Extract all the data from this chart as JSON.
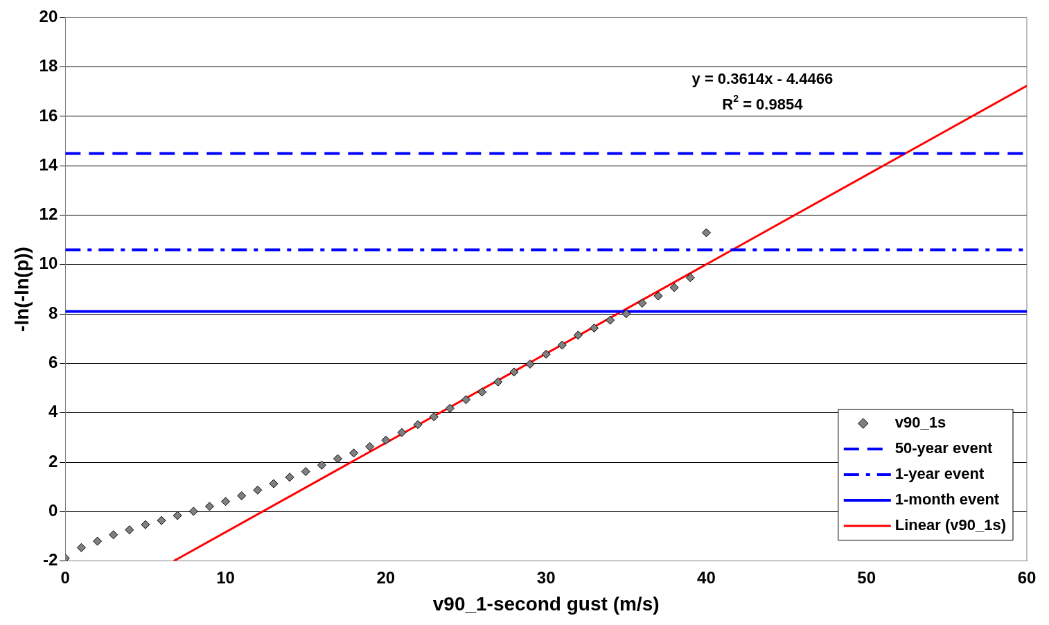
{
  "chart_data": {
    "type": "scatter",
    "xlabel": "v90_1-second gust (m/s)",
    "ylabel": "-ln(-ln(p))",
    "x": [
      0,
      1,
      2,
      3,
      4,
      5,
      6,
      7,
      8,
      9,
      10,
      11,
      12,
      13,
      14,
      15,
      16,
      17,
      18,
      19,
      20,
      21,
      22,
      23,
      24,
      25,
      26,
      27,
      28,
      29,
      30,
      31,
      32,
      33,
      34,
      35,
      36,
      37,
      38,
      39,
      40
    ],
    "series": [
      {
        "name": "v90_1s",
        "color": "#808080",
        "marker": "diamond",
        "values": [
          -1.89,
          -1.46,
          -1.2,
          -0.94,
          -0.74,
          -0.53,
          -0.36,
          -0.16,
          0.01,
          0.21,
          0.41,
          0.64,
          0.87,
          1.13,
          1.39,
          1.62,
          1.88,
          2.14,
          2.37,
          2.63,
          2.89,
          3.2,
          3.52,
          3.84,
          4.18,
          4.53,
          4.84,
          5.25,
          5.65,
          5.97,
          6.37,
          6.74,
          7.14,
          7.43,
          7.75,
          8.01,
          8.44,
          8.73,
          9.07,
          9.47,
          11.29
        ]
      },
      {
        "name": "Linear (v90_1s)",
        "type": "line",
        "color": "#ff0000",
        "x": [
          6.77,
          60
        ],
        "values": [
          -2,
          17.24
        ]
      }
    ],
    "ref_lines": [
      {
        "axis": "y",
        "value": 14.5,
        "label": "50-year event",
        "color": "#0000ff",
        "line_style": "dashed"
      },
      {
        "axis": "y",
        "value": 10.6,
        "label": "1-year event",
        "color": "#0000ff",
        "line_style": "dash-dot"
      },
      {
        "axis": "y",
        "value": 8.1,
        "label": "1-month event",
        "color": "#0000ff",
        "line_style": "solid"
      }
    ],
    "annotations": [
      "y = 0.3614x - 4.4466",
      "R$^{2}$ = 0.9854"
    ],
    "xlim": [
      0,
      60
    ],
    "xticks": [
      0,
      10,
      20,
      30,
      40,
      50,
      60
    ],
    "ylim": [
      -2,
      20
    ],
    "yticks": [
      -2,
      0,
      2,
      4,
      6,
      8,
      10,
      12,
      14,
      16,
      18,
      20
    ],
    "grid": "y",
    "legend": "bottom right"
  }
}
